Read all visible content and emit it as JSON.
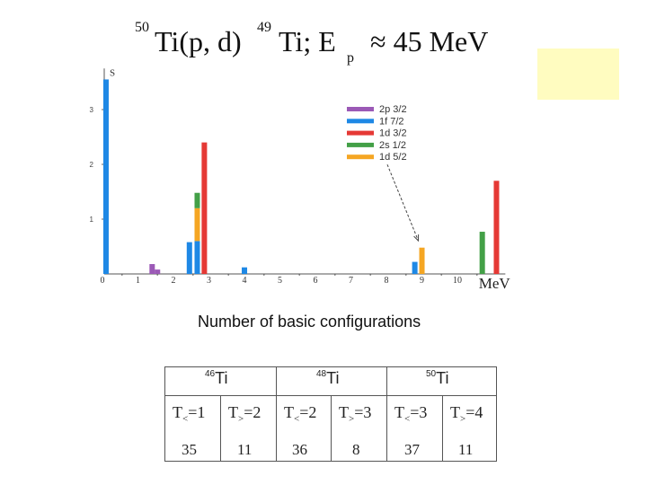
{
  "title": {
    "mass_a": "50",
    "reaction": "Ti(p, d)",
    "mass_b": "49",
    "nucleus": "Ti; E",
    "subscript": "p",
    "energy": "≈ 45 MeV"
  },
  "chart_data": {
    "type": "bar",
    "y_axis_label": "S",
    "x_unit_label": "MeV",
    "x_ticks": [
      "0",
      "1",
      "2",
      "3",
      "4",
      "5",
      "6",
      "7",
      "8",
      "9",
      "10"
    ],
    "y_ticks": [
      "1",
      "2",
      "3"
    ],
    "xlim": [
      0,
      11.3
    ],
    "ylim": [
      0,
      3.75
    ],
    "legend": [
      {
        "name": "2p 3/2",
        "color": "#9b59b6"
      },
      {
        "name": "1f 7/2",
        "color": "#1e88e5"
      },
      {
        "name": "1d 3/2",
        "color": "#e53935"
      },
      {
        "name": "2s 1/2",
        "color": "#43a047"
      },
      {
        "name": "1d 5/2",
        "color": "#f5a623"
      }
    ],
    "bars": [
      {
        "x": 0.05,
        "series": "1f 7/2",
        "value": 3.55
      },
      {
        "x": 1.35,
        "series": "2p 3/2",
        "value": 0.18
      },
      {
        "x": 1.5,
        "series": "2p 3/2",
        "value": 0.08
      },
      {
        "x": 2.4,
        "series": "1f 7/2",
        "value": 0.58
      },
      {
        "x": 2.62,
        "series": "1f 7/2",
        "value": 0.6
      },
      {
        "x": 2.62,
        "series": "1d 5/2",
        "value": 0.6,
        "base": 0.6
      },
      {
        "x": 2.62,
        "series": "2s 1/2",
        "value": 0.28,
        "base": 1.2
      },
      {
        "x": 2.82,
        "series": "1d 3/2",
        "value": 2.4
      },
      {
        "x": 3.95,
        "series": "1f 7/2",
        "value": 0.12
      },
      {
        "x": 8.75,
        "series": "1f 7/2",
        "value": 0.22
      },
      {
        "x": 8.95,
        "series": "1d 5/2",
        "value": 0.48
      },
      {
        "x": 10.65,
        "series": "2s 1/2",
        "value": 0.77
      },
      {
        "x": 11.05,
        "series": "1d 3/2",
        "value": 1.7
      }
    ],
    "annotation": {
      "from_legend": "1d 5/2",
      "to_x": 8.95
    }
  },
  "caption": "Number of basic configurations",
  "table": {
    "nuclei": [
      {
        "mass": "46",
        "symbol": "Ti"
      },
      {
        "mass": "48",
        "symbol": "Ti"
      },
      {
        "mass": "50",
        "symbol": "Ti"
      }
    ],
    "columns": [
      {
        "T": "T",
        "sub": "<",
        "val": "=1",
        "count": "35"
      },
      {
        "T": "T",
        "sub": ">",
        "val": "=2",
        "count": "11"
      },
      {
        "T": "T",
        "sub": "<",
        "val": "=2",
        "count": "36"
      },
      {
        "T": "T",
        "sub": ">",
        "val": "=3",
        "count": "8"
      },
      {
        "T": "T",
        "sub": "<",
        "val": "=3",
        "count": "37"
      },
      {
        "T": "T",
        "sub": ">",
        "val": "=4",
        "count": "11"
      }
    ]
  }
}
